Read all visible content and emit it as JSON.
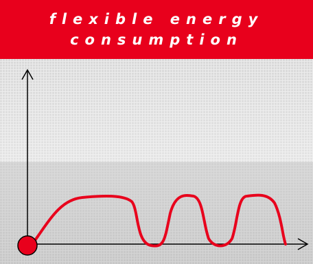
{
  "header": {
    "title": "flexible energy consumption"
  }
}
